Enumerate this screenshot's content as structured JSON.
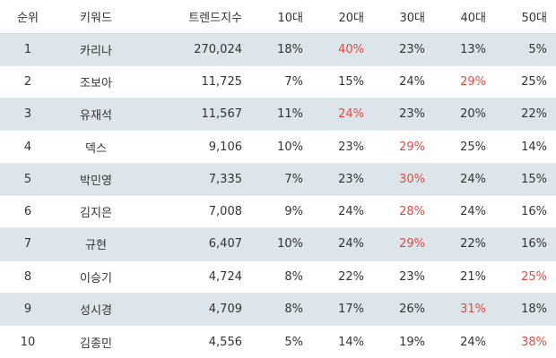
{
  "headers": [
    "순위",
    "키워드",
    "트렌드지수",
    "10대",
    "20대",
    "30대",
    "40대",
    "50대"
  ],
  "highlight_color": "#e8473f",
  "stripe_color": "#dbe5ea",
  "rows": [
    {
      "rank": "1",
      "keyword": "카리나",
      "trend": "270,024",
      "ages": [
        "18%",
        "40%",
        "23%",
        "13%",
        "5%"
      ],
      "highlight": 1
    },
    {
      "rank": "2",
      "keyword": "조보아",
      "trend": "11,725",
      "ages": [
        "7%",
        "15%",
        "24%",
        "29%",
        "25%"
      ],
      "highlight": 3
    },
    {
      "rank": "3",
      "keyword": "유재석",
      "trend": "11,567",
      "ages": [
        "11%",
        "24%",
        "23%",
        "20%",
        "22%"
      ],
      "highlight": 1
    },
    {
      "rank": "4",
      "keyword": "덱스",
      "trend": "9,106",
      "ages": [
        "10%",
        "23%",
        "29%",
        "25%",
        "14%"
      ],
      "highlight": 2
    },
    {
      "rank": "5",
      "keyword": "박민영",
      "trend": "7,335",
      "ages": [
        "7%",
        "23%",
        "30%",
        "24%",
        "15%"
      ],
      "highlight": 2
    },
    {
      "rank": "6",
      "keyword": "김지은",
      "trend": "7,008",
      "ages": [
        "9%",
        "24%",
        "28%",
        "24%",
        "16%"
      ],
      "highlight": 2
    },
    {
      "rank": "7",
      "keyword": "규현",
      "trend": "6,407",
      "ages": [
        "10%",
        "24%",
        "29%",
        "22%",
        "16%"
      ],
      "highlight": 2
    },
    {
      "rank": "8",
      "keyword": "이승기",
      "trend": "4,724",
      "ages": [
        "8%",
        "22%",
        "23%",
        "21%",
        "25%"
      ],
      "highlight": 4
    },
    {
      "rank": "9",
      "keyword": "성시경",
      "trend": "4,709",
      "ages": [
        "8%",
        "17%",
        "26%",
        "31%",
        "18%"
      ],
      "highlight": 3
    },
    {
      "rank": "10",
      "keyword": "김종민",
      "trend": "4,556",
      "ages": [
        "5%",
        "14%",
        "19%",
        "24%",
        "38%"
      ],
      "highlight": 4
    }
  ]
}
